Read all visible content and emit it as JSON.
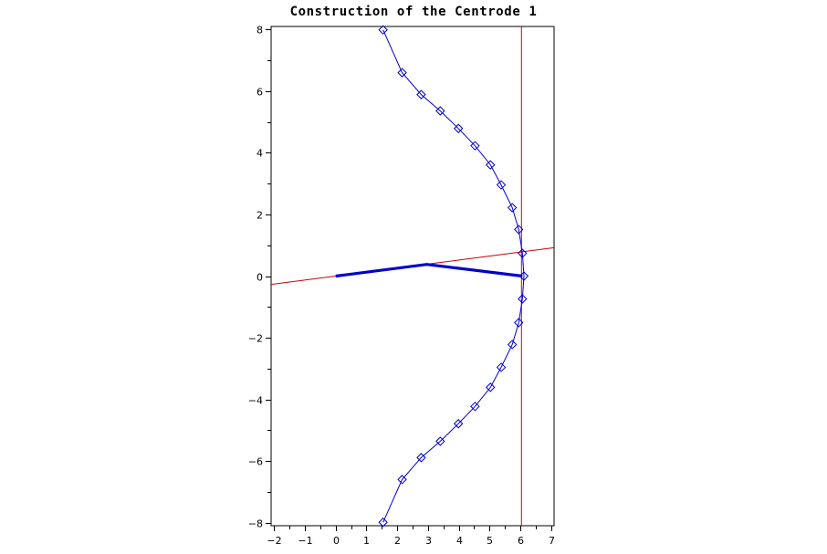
{
  "chart_data": {
    "type": "line",
    "title": "Construction of the Centrode 1",
    "xlabel": "",
    "ylabel": "",
    "xlim": [
      -2.1,
      7.1
    ],
    "ylim": [
      -8.1,
      8.1
    ],
    "x_ticks": [
      -2,
      -1,
      0,
      1,
      2,
      3,
      4,
      5,
      6,
      7
    ],
    "y_ticks": [
      -8,
      -6,
      -4,
      -2,
      0,
      2,
      4,
      6,
      8
    ],
    "grid": false,
    "series": [
      {
        "name": "centrode",
        "style": "line-with-diamond-markers",
        "color": "#0000cc",
        "points": [
          [
            1.54,
            7.99
          ],
          [
            2.16,
            6.6
          ],
          [
            2.78,
            5.89
          ],
          [
            3.4,
            5.36
          ],
          [
            3.99,
            4.79
          ],
          [
            4.53,
            4.23
          ],
          [
            5.03,
            3.61
          ],
          [
            5.38,
            2.96
          ],
          [
            5.74,
            2.22
          ],
          [
            5.95,
            1.51
          ],
          [
            6.07,
            0.74
          ],
          [
            6.12,
            0.0
          ],
          [
            6.07,
            -0.74
          ],
          [
            5.95,
            -1.51
          ],
          [
            5.74,
            -2.22
          ],
          [
            5.38,
            -2.96
          ],
          [
            5.03,
            -3.61
          ],
          [
            4.53,
            -4.23
          ],
          [
            3.99,
            -4.79
          ],
          [
            3.4,
            -5.36
          ],
          [
            2.78,
            -5.89
          ],
          [
            2.16,
            -6.6
          ],
          [
            1.54,
            -7.99
          ]
        ]
      },
      {
        "name": "linkage",
        "style": "thick-line",
        "color": "#0000cc",
        "points": [
          [
            0.0,
            0.0
          ],
          [
            2.96,
            0.38
          ],
          [
            6.07,
            0.0
          ]
        ]
      },
      {
        "name": "slanted-line",
        "style": "thin-line",
        "color": "#cc0000",
        "points": [
          [
            -2.1,
            -0.27
          ],
          [
            7.1,
            0.92
          ]
        ]
      },
      {
        "name": "vertical-line",
        "style": "thin-line",
        "color": "#cc0000",
        "points": [
          [
            6.04,
            -8.1
          ],
          [
            6.04,
            8.1
          ]
        ]
      }
    ]
  },
  "colors": {
    "curve": "#0000cc",
    "reference": "#cc0000",
    "axis": "#000000",
    "background": "#ffffff"
  }
}
